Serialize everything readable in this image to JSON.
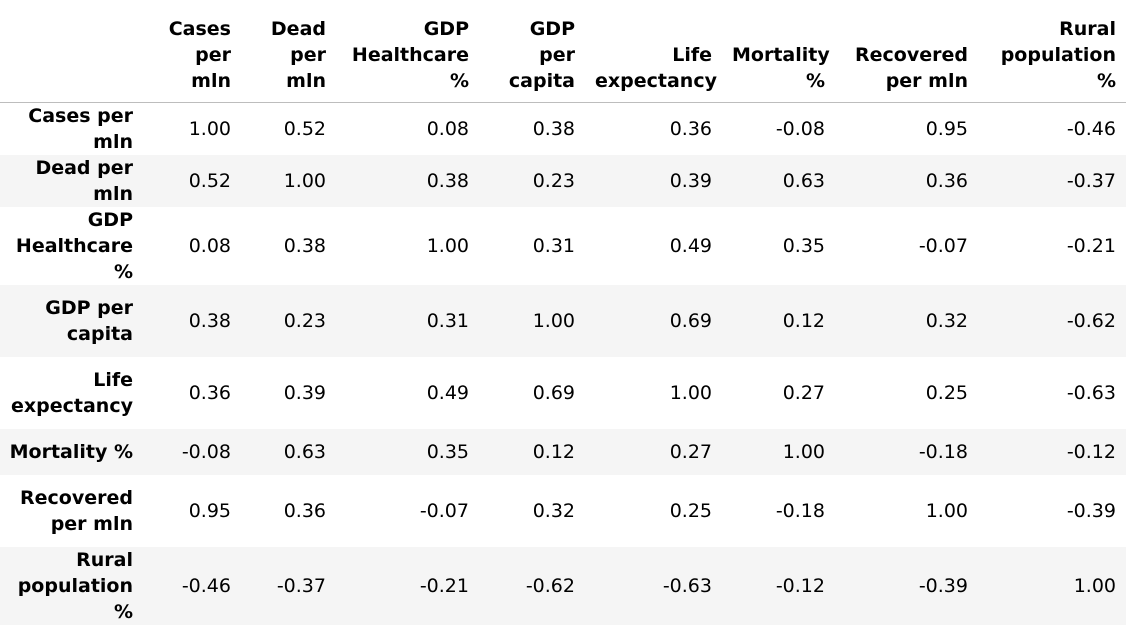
{
  "table": {
    "columns": [
      "Cases per mln",
      "Dead per mln",
      "GDP Healthcare %",
      "GDP per capita",
      "Life expectancy",
      "Mortality %",
      "Recovered per mln",
      "Rural population %"
    ],
    "rows": [
      {
        "label": "Cases per mln",
        "values": [
          "1.00",
          "0.52",
          "0.08",
          "0.38",
          "0.36",
          "-0.08",
          "0.95",
          "-0.46"
        ]
      },
      {
        "label": "Dead per mln",
        "values": [
          "0.52",
          "1.00",
          "0.38",
          "0.23",
          "0.39",
          "0.63",
          "0.36",
          "-0.37"
        ]
      },
      {
        "label": "GDP Healthcare %",
        "values": [
          "0.08",
          "0.38",
          "1.00",
          "0.31",
          "0.49",
          "0.35",
          "-0.07",
          "-0.21"
        ]
      },
      {
        "label": "GDP per capita",
        "values": [
          "0.38",
          "0.23",
          "0.31",
          "1.00",
          "0.69",
          "0.12",
          "0.32",
          "-0.62"
        ]
      },
      {
        "label": "Life expectancy",
        "values": [
          "0.36",
          "0.39",
          "0.49",
          "0.69",
          "1.00",
          "0.27",
          "0.25",
          "-0.63"
        ]
      },
      {
        "label": "Mortality %",
        "values": [
          "-0.08",
          "0.63",
          "0.35",
          "0.12",
          "0.27",
          "1.00",
          "-0.18",
          "-0.12"
        ]
      },
      {
        "label": "Recovered per mln",
        "values": [
          "0.95",
          "0.36",
          "-0.07",
          "0.32",
          "0.25",
          "-0.18",
          "1.00",
          "-0.39"
        ]
      },
      {
        "label": "Rural population %",
        "values": [
          "-0.46",
          "-0.37",
          "-0.21",
          "-0.62",
          "-0.63",
          "-0.12",
          "-0.39",
          "1.00"
        ]
      }
    ]
  }
}
